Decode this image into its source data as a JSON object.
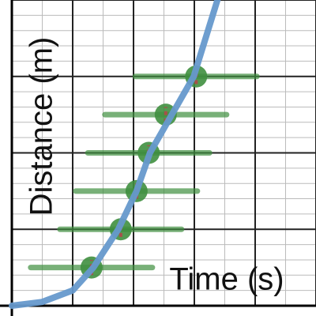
{
  "chart_data": {
    "type": "scatter",
    "x_label": "Time (s)",
    "y_label": "Distance (m)",
    "xlim": [
      0,
      5
    ],
    "ylim": [
      0,
      4
    ],
    "xticks": [
      0,
      1,
      2,
      3,
      4,
      5
    ],
    "yticks": [
      0,
      1,
      2,
      3,
      4
    ],
    "xminorticks": [
      0.5,
      1.5,
      2.5,
      3.5,
      4.5
    ],
    "yminorticks": [
      0.2,
      0.4,
      0.6,
      0.8,
      1.2,
      1.4,
      1.6,
      1.8,
      2.2,
      2.4,
      2.6,
      2.8,
      3.2,
      3.4,
      3.6,
      3.8
    ],
    "grid": true,
    "series": [
      {
        "type": "scatter",
        "color": "#3f8f3f",
        "error_color": "#b04a4a",
        "x": [
          1.31,
          1.79,
          2.05,
          2.25,
          2.53,
          3.03
        ],
        "values": [
          0.5,
          1.0,
          1.5,
          2.0,
          2.5,
          3.0
        ],
        "xerr": [
          1.0,
          1.0,
          1.0,
          1.0,
          1.0,
          1.0
        ],
        "yerr": [
          0.1,
          0.1,
          0.1,
          0.1,
          0.1,
          0.1
        ]
      },
      {
        "type": "line",
        "color": "#6699cc",
        "x": [
          0,
          0.5,
          1,
          1.34,
          1.75,
          2.05,
          2.27,
          2.63,
          2.99,
          3.38
        ],
        "values": [
          0,
          0.05,
          0.2,
          0.5,
          1,
          1.5,
          2,
          2.5,
          3,
          4
        ]
      }
    ]
  }
}
